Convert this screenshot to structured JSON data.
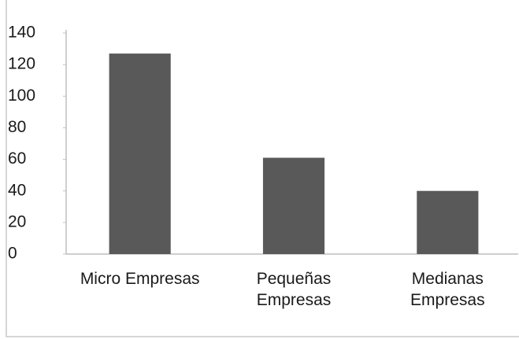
{
  "chart_data": {
    "type": "bar",
    "categories": [
      "Micro Empresas",
      "Pequeñas Empresas",
      "Medianas Empresas"
    ],
    "values": [
      127,
      61,
      40
    ],
    "color": "#595959",
    "ylim": [
      0,
      140
    ],
    "yticks": [
      0,
      20,
      40,
      60,
      80,
      100,
      120,
      140
    ],
    "grid": false
  }
}
